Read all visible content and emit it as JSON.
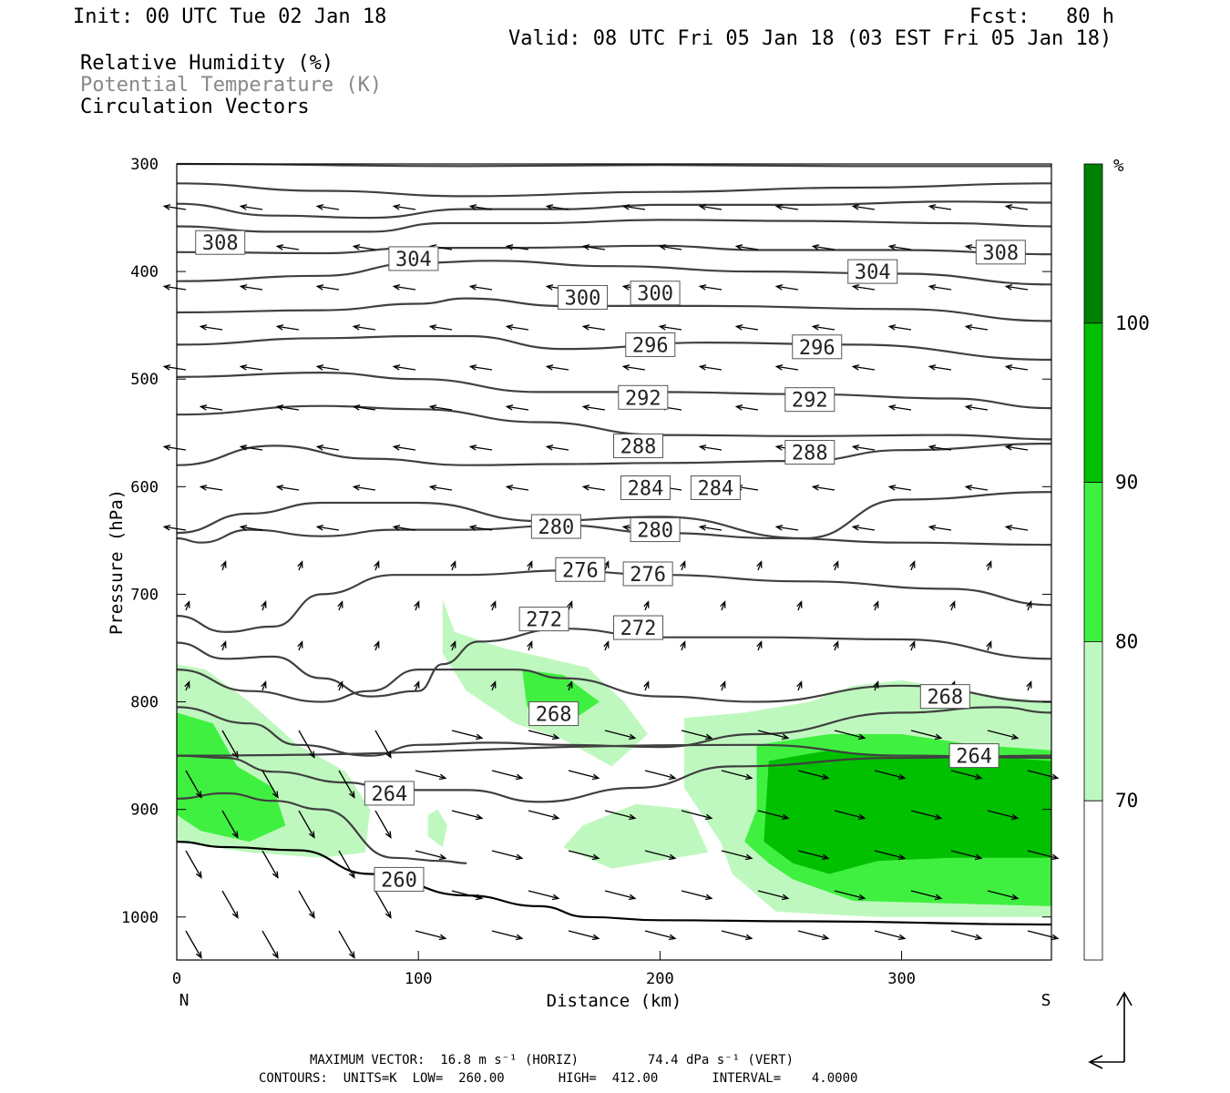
{
  "header": {
    "init": "Init: 00 UTC Tue 02 Jan 18",
    "fcst": "Fcst:   80 h",
    "valid": "Valid: 08 UTC Fri 05 Jan 18 (03 EST Fri 05 Jan 18)"
  },
  "fields": {
    "rh": "Relative Humidity (%)",
    "theta": "Potential Temperature (K)",
    "vectors": "Circulation Vectors"
  },
  "footer": {
    "max_vector": "MAXIMUM VECTOR:  16.8 m s⁻¹ (HORIZ)         74.4 dPa s⁻¹ (VERT)",
    "contours": "CONTOURS:  UNITS=K  LOW=  260.00       HIGH=  412.00       INTERVAL=    4.0000"
  },
  "colors": {
    "rh_70_80": "#bff8bf",
    "rh_80_90": "#40f040",
    "rh_90_100": "#00c000",
    "rh_100": "#008000",
    "theta_line": "#404040",
    "axis": "#000000"
  },
  "chart_data": {
    "type": "cross-section",
    "xlabel": "Distance (km)",
    "ylabel": "Pressure (hPa)",
    "xlim": [
      0,
      362
    ],
    "ylim": [
      1040,
      300
    ],
    "x_ticks": [
      0,
      100,
      200,
      300
    ],
    "y_ticks": [
      300,
      400,
      500,
      600,
      700,
      800,
      900,
      1000
    ],
    "x_end_labels": [
      "N",
      "S"
    ],
    "colorbar": {
      "unit": "%",
      "levels": [
        70,
        80,
        90,
        100
      ],
      "colors": [
        "#ffffff",
        "#bff8bf",
        "#40f040",
        "#00c000",
        "#008000"
      ]
    },
    "theta_labels": [
      {
        "value": "308",
        "x": 18,
        "p": 373
      },
      {
        "value": "308",
        "x": 341,
        "p": 382
      },
      {
        "value": "304",
        "x": 98,
        "p": 388
      },
      {
        "value": "304",
        "x": 288,
        "p": 400
      },
      {
        "value": "300",
        "x": 168,
        "p": 424
      },
      {
        "value": "300",
        "x": 198,
        "p": 420
      },
      {
        "value": "296",
        "x": 196,
        "p": 468
      },
      {
        "value": "296",
        "x": 265,
        "p": 470
      },
      {
        "value": "292",
        "x": 193,
        "p": 517
      },
      {
        "value": "292",
        "x": 262,
        "p": 519
      },
      {
        "value": "288",
        "x": 191,
        "p": 562
      },
      {
        "value": "288",
        "x": 262,
        "p": 568
      },
      {
        "value": "284",
        "x": 194,
        "p": 601
      },
      {
        "value": "284",
        "x": 223,
        "p": 601
      },
      {
        "value": "280",
        "x": 157,
        "p": 637
      },
      {
        "value": "280",
        "x": 198,
        "p": 640
      },
      {
        "value": "276",
        "x": 167,
        "p": 677
      },
      {
        "value": "276",
        "x": 195,
        "p": 681
      },
      {
        "value": "272",
        "x": 152,
        "p": 723
      },
      {
        "value": "272",
        "x": 191,
        "p": 731
      },
      {
        "value": "268",
        "x": 156,
        "p": 811
      },
      {
        "value": "268",
        "x": 318,
        "p": 795
      },
      {
        "value": "264",
        "x": 88,
        "p": 885
      },
      {
        "value": "264",
        "x": 330,
        "p": 850
      },
      {
        "value": "260",
        "x": 92,
        "p": 965
      }
    ],
    "theta_lines": [
      [
        [
          0,
          300
        ],
        [
          120,
          302
        ],
        [
          200,
          301
        ],
        [
          280,
          302
        ],
        [
          362,
          302
        ]
      ],
      [
        [
          0,
          318
        ],
        [
          60,
          325
        ],
        [
          120,
          330
        ],
        [
          200,
          326
        ],
        [
          280,
          322
        ],
        [
          362,
          318
        ]
      ],
      [
        [
          0,
          337
        ],
        [
          40,
          348
        ],
        [
          80,
          350
        ],
        [
          120,
          342
        ],
        [
          160,
          342
        ],
        [
          200,
          338
        ],
        [
          260,
          338
        ],
        [
          320,
          335
        ],
        [
          362,
          336
        ]
      ],
      [
        [
          0,
          358
        ],
        [
          40,
          363
        ],
        [
          80,
          363
        ],
        [
          110,
          355
        ],
        [
          150,
          355
        ],
        [
          200,
          352
        ],
        [
          260,
          353
        ],
        [
          320,
          355
        ],
        [
          362,
          358
        ]
      ],
      [
        [
          0,
          382
        ],
        [
          60,
          383
        ],
        [
          100,
          378
        ],
        [
          140,
          378
        ],
        [
          200,
          376
        ],
        [
          240,
          380
        ],
        [
          300,
          380
        ],
        [
          362,
          384
        ]
      ],
      [
        [
          0,
          409
        ],
        [
          60,
          404
        ],
        [
          100,
          392
        ],
        [
          130,
          390
        ],
        [
          180,
          395
        ],
        [
          240,
          400
        ],
        [
          300,
          402
        ],
        [
          362,
          412
        ]
      ],
      [
        [
          0,
          438
        ],
        [
          60,
          436
        ],
        [
          100,
          430
        ],
        [
          120,
          425
        ],
        [
          160,
          432
        ],
        [
          220,
          432
        ],
        [
          300,
          435
        ],
        [
          362,
          446
        ]
      ],
      [
        [
          0,
          468
        ],
        [
          60,
          462
        ],
        [
          100,
          460
        ],
        [
          120,
          460
        ],
        [
          160,
          472
        ],
        [
          220,
          466
        ],
        [
          280,
          468
        ],
        [
          362,
          482
        ]
      ],
      [
        [
          0,
          498
        ],
        [
          60,
          494
        ],
        [
          100,
          500
        ],
        [
          150,
          512
        ],
        [
          200,
          512
        ],
        [
          260,
          514
        ],
        [
          320,
          518
        ],
        [
          362,
          527
        ]
      ],
      [
        [
          0,
          533
        ],
        [
          60,
          525
        ],
        [
          100,
          528
        ],
        [
          150,
          540
        ],
        [
          200,
          552
        ],
        [
          260,
          553
        ],
        [
          320,
          552
        ],
        [
          362,
          556
        ]
      ],
      [
        [
          0,
          580
        ],
        [
          40,
          562
        ],
        [
          80,
          574
        ],
        [
          120,
          580
        ],
        [
          160,
          579
        ],
        [
          200,
          578
        ],
        [
          260,
          576
        ],
        [
          300,
          566
        ],
        [
          362,
          560
        ]
      ],
      [
        [
          0,
          643
        ],
        [
          30,
          625
        ],
        [
          60,
          615
        ],
        [
          100,
          615
        ],
        [
          150,
          632
        ],
        [
          200,
          628
        ],
        [
          260,
          648
        ],
        [
          300,
          612
        ],
        [
          362,
          605
        ]
      ],
      [
        [
          0,
          648
        ],
        [
          10,
          652
        ],
        [
          30,
          640
        ],
        [
          60,
          646
        ],
        [
          90,
          640
        ],
        [
          120,
          640
        ],
        [
          160,
          636
        ],
        [
          200,
          643
        ],
        [
          250,
          648
        ],
        [
          300,
          652
        ],
        [
          362,
          654
        ]
      ],
      [
        [
          0,
          720
        ],
        [
          20,
          735
        ],
        [
          40,
          730
        ],
        [
          60,
          700
        ],
        [
          90,
          682
        ],
        [
          120,
          682
        ],
        [
          160,
          678
        ],
        [
          200,
          682
        ],
        [
          260,
          688
        ],
        [
          320,
          695
        ],
        [
          362,
          710
        ]
      ],
      [
        [
          0,
          745
        ],
        [
          20,
          760
        ],
        [
          40,
          758
        ],
        [
          60,
          778
        ],
        [
          80,
          795
        ],
        [
          100,
          790
        ],
        [
          110,
          765
        ],
        [
          125,
          744
        ],
        [
          160,
          732
        ],
        [
          200,
          740
        ],
        [
          240,
          740
        ],
        [
          300,
          742
        ],
        [
          362,
          760
        ]
      ],
      [
        [
          0,
          770
        ],
        [
          30,
          790
        ],
        [
          60,
          800
        ],
        [
          80,
          790
        ],
        [
          100,
          770
        ],
        [
          140,
          770
        ],
        [
          160,
          778
        ],
        [
          200,
          795
        ],
        [
          240,
          800
        ],
        [
          300,
          785
        ],
        [
          362,
          800
        ]
      ],
      [
        [
          0,
          805
        ],
        [
          30,
          820
        ],
        [
          50,
          840
        ],
        [
          80,
          850
        ],
        [
          100,
          840
        ],
        [
          130,
          838
        ],
        [
          160,
          840
        ],
        [
          200,
          842
        ],
        [
          240,
          830
        ],
        [
          300,
          810
        ],
        [
          340,
          805
        ],
        [
          362,
          810
        ]
      ],
      [
        [
          0,
          850
        ],
        [
          20,
          852
        ],
        [
          40,
          865
        ],
        [
          70,
          875
        ],
        [
          90,
          882
        ],
        [
          120,
          882
        ],
        [
          150,
          893
        ],
        [
          190,
          880
        ],
        [
          230,
          860
        ],
        [
          300,
          852
        ],
        [
          362,
          850
        ]
      ],
      [
        [
          0,
          890
        ],
        [
          20,
          885
        ],
        [
          40,
          892
        ],
        [
          60,
          900
        ],
        [
          90,
          945
        ],
        [
          110,
          948
        ],
        [
          120,
          950
        ]
      ],
      [
        [
          0,
          850
        ],
        [
          240,
          840
        ],
        [
          300,
          850
        ],
        [
          362,
          852
        ]
      ],
      [
        [
          0,
          930
        ],
        [
          20,
          935
        ],
        [
          50,
          938
        ],
        [
          80,
          960
        ],
        [
          120,
          980
        ],
        [
          150,
          990
        ],
        [
          170,
          1000
        ],
        [
          200,
          1003
        ],
        [
          260,
          1004
        ],
        [
          362,
          1007
        ]
      ]
    ],
    "rh_regions": [
      {
        "level": "70-80",
        "points": [
          [
            0,
            765
          ],
          [
            12,
            770
          ],
          [
            30,
            800
          ],
          [
            50,
            840
          ],
          [
            70,
            865
          ],
          [
            80,
            900
          ],
          [
            78,
            940
          ],
          [
            60,
            945
          ],
          [
            30,
            940
          ],
          [
            0,
            930
          ]
        ]
      },
      {
        "level": "70-80",
        "points": [
          [
            110,
            705
          ],
          [
            115,
            735
          ],
          [
            135,
            750
          ],
          [
            170,
            768
          ],
          [
            185,
            800
          ],
          [
            195,
            830
          ],
          [
            180,
            860
          ],
          [
            160,
            835
          ],
          [
            140,
            820
          ],
          [
            120,
            790
          ],
          [
            110,
            755
          ]
        ]
      },
      {
        "level": "70-80",
        "points": [
          [
            108,
            900
          ],
          [
            112,
            915
          ],
          [
            110,
            935
          ],
          [
            104,
            925
          ],
          [
            104,
            905
          ]
        ]
      },
      {
        "level": "70-80",
        "points": [
          [
            168,
            915
          ],
          [
            190,
            895
          ],
          [
            212,
            900
          ],
          [
            220,
            940
          ],
          [
            180,
            955
          ],
          [
            160,
            935
          ]
        ]
      },
      {
        "level": "70-80",
        "points": [
          [
            210,
            815
          ],
          [
            235,
            810
          ],
          [
            262,
            800
          ],
          [
            280,
            785
          ],
          [
            300,
            780
          ],
          [
            340,
            795
          ],
          [
            362,
            800
          ],
          [
            362,
            1000
          ],
          [
            290,
            1000
          ],
          [
            248,
            995
          ],
          [
            230,
            960
          ],
          [
            225,
            930
          ],
          [
            210,
            880
          ]
        ]
      },
      {
        "level": "80-90",
        "points": [
          [
            0,
            810
          ],
          [
            15,
            820
          ],
          [
            25,
            860
          ],
          [
            40,
            880
          ],
          [
            45,
            915
          ],
          [
            30,
            930
          ],
          [
            10,
            920
          ],
          [
            0,
            905
          ]
        ]
      },
      {
        "level": "80-90",
        "points": [
          [
            143,
            770
          ],
          [
            160,
            775
          ],
          [
            175,
            800
          ],
          [
            165,
            815
          ],
          [
            145,
            805
          ]
        ]
      },
      {
        "level": "80-90",
        "points": [
          [
            240,
            840
          ],
          [
            270,
            830
          ],
          [
            300,
            830
          ],
          [
            330,
            840
          ],
          [
            362,
            845
          ],
          [
            362,
            990
          ],
          [
            280,
            985
          ],
          [
            255,
            965
          ],
          [
            245,
            950
          ],
          [
            235,
            930
          ],
          [
            240,
            900
          ]
        ]
      },
      {
        "level": "90-100",
        "points": [
          [
            245,
            855
          ],
          [
            270,
            845
          ],
          [
            300,
            852
          ],
          [
            330,
            850
          ],
          [
            362,
            855
          ],
          [
            362,
            945
          ],
          [
            320,
            945
          ],
          [
            290,
            948
          ],
          [
            270,
            960
          ],
          [
            255,
            950
          ],
          [
            243,
            930
          ]
        ]
      }
    ]
  }
}
